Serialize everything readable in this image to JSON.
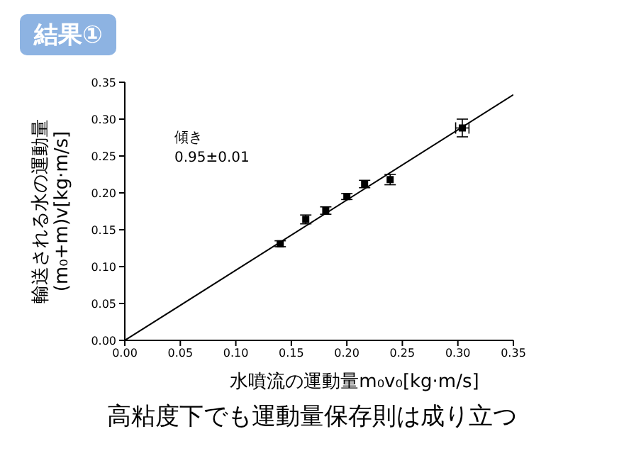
{
  "chart_data": {
    "type": "scatter",
    "title": "結果①",
    "xlabel": "水噴流の運動量m₀v₀[kg·m/s]",
    "ylabel": "輸送される水の運動量\n(m₀+m)v[kg·m/s]",
    "annotations": [
      "傾き\n0.95±0.01",
      "高粘度下でも運動量保存則は成り立つ"
    ],
    "series": [
      {
        "type": "scatter",
        "color": "#000000",
        "marker": "square",
        "x": [
          0.14,
          0.163,
          0.181,
          0.2,
          0.216,
          0.239,
          0.304
        ],
        "values": [
          0.131,
          0.164,
          0.176,
          0.195,
          0.212,
          0.218,
          0.288
        ],
        "errors": [
          0.004,
          0.006,
          0.005,
          0.004,
          0.005,
          0.007,
          0.012
        ],
        "xerrors": [
          null,
          null,
          null,
          null,
          null,
          null,
          0.006
        ]
      },
      {
        "type": "line",
        "color": "#000000",
        "x": [
          0,
          0.35
        ],
        "values": [
          0,
          0.333
        ]
      }
    ],
    "xlim": [
      0,
      0.35
    ],
    "xticks": [
      {
        "value": 0,
        "label": "0.00"
      },
      0.05,
      {
        "value": 0.1,
        "label": "0.10"
      },
      0.15,
      {
        "value": 0.2,
        "label": "0.20"
      },
      0.25,
      {
        "value": 0.3,
        "label": "0.30"
      },
      0.35
    ],
    "ylim": [
      0,
      0.35
    ],
    "yticks": [
      {
        "value": 0,
        "label": "0.00"
      },
      0.05,
      {
        "value": 0.1,
        "label": "0.10"
      },
      0.15,
      {
        "value": 0.2,
        "label": "0.20"
      },
      0.25,
      {
        "value": 0.3,
        "label": "0.30"
      },
      0.35
    ],
    "grid": false,
    "legend": false
  }
}
